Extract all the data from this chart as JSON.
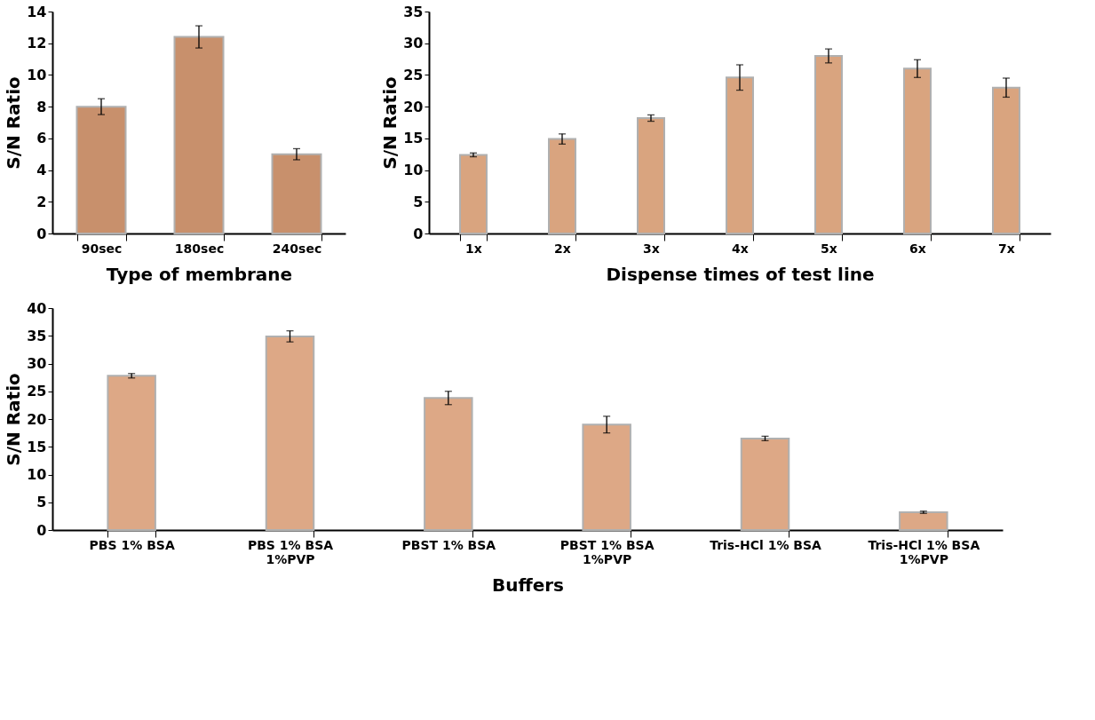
{
  "chart_data": [
    {
      "type": "bar",
      "xlabel": "Type of membrane",
      "ylabel": "S/N Ratio",
      "categories": [
        "90sec",
        "180sec",
        "240sec"
      ],
      "series": [
        {
          "color": "#c8906c",
          "values": [
            8.0,
            12.4,
            5.0
          ],
          "errors": [
            0.5,
            0.7,
            0.35
          ]
        }
      ],
      "ylim": [
        0,
        14
      ],
      "yticks": [
        0,
        2,
        4,
        6,
        8,
        10,
        12,
        14
      ],
      "grid": false
    },
    {
      "type": "bar",
      "xlabel": "Dispense times of test line",
      "ylabel": "S/N Ratio",
      "categories": [
        "1x",
        "2x",
        "3x",
        "4x",
        "5x",
        "6x",
        "7x"
      ],
      "series": [
        {
          "color": "#d9a47f",
          "values": [
            12.4,
            14.9,
            18.2,
            24.6,
            28.0,
            26.0,
            23.0
          ],
          "errors": [
            0.3,
            0.8,
            0.5,
            2.0,
            1.1,
            1.4,
            1.5
          ]
        }
      ],
      "ylim": [
        0,
        35
      ],
      "yticks": [
        0,
        5,
        10,
        15,
        20,
        25,
        30,
        35
      ],
      "grid": false
    },
    {
      "type": "bar",
      "xlabel": "Buffers",
      "ylabel": "S/N Ratio",
      "categories": [
        "PBS 1% BSA",
        "PBS 1% BSA\n1%PVP",
        "PBST 1% BSA",
        "PBST 1% BSA\n1%PVP",
        "Tris-HCl 1% BSA",
        "Tris-HCl 1% BSA\n1%PVP"
      ],
      "series": [
        {
          "color": "#dda886",
          "values": [
            27.8,
            34.9,
            23.8,
            19.0,
            16.5,
            3.2
          ],
          "errors": [
            0.4,
            1.0,
            1.2,
            1.5,
            0.4,
            0.2
          ]
        }
      ],
      "ylim": [
        0,
        40
      ],
      "yticks": [
        0,
        5,
        10,
        15,
        20,
        25,
        30,
        35,
        40
      ],
      "grid": false
    }
  ]
}
